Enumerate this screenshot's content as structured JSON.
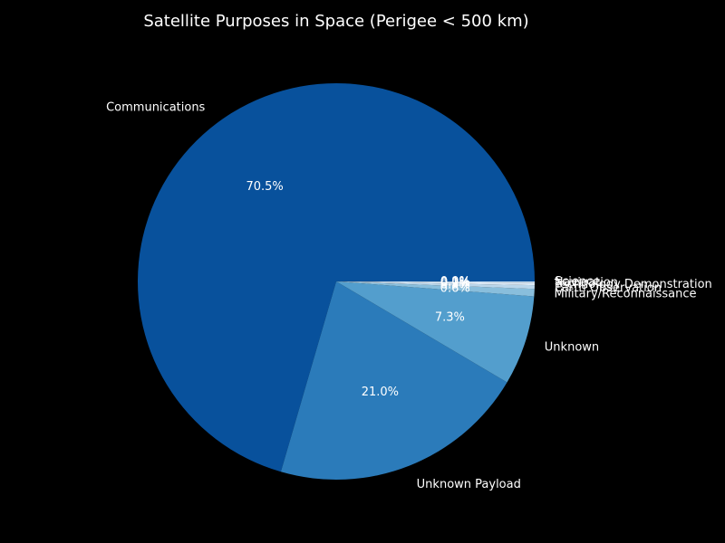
{
  "chart_data": {
    "type": "pie",
    "title": "Satellite Purposes in Space (Perigee < 500 km)",
    "start_angle_deg": 0,
    "direction": "counterclockwise",
    "background": "#000000",
    "slices": [
      {
        "label": "Communications",
        "value": 70.5,
        "pct_label": "70.5%",
        "color": "#08519c"
      },
      {
        "label": "Unknown Payload",
        "value": 21.0,
        "pct_label": "21.0%",
        "color": "#2b7bba"
      },
      {
        "label": "Unknown",
        "value": 7.3,
        "pct_label": "7.3%",
        "color": "#539ecd"
      },
      {
        "label": "Military/Reconnaissance",
        "value": 0.6,
        "pct_label": "0.6%",
        "color": "#89bedc"
      },
      {
        "label": "Earth Observation",
        "value": 0.3,
        "pct_label": "0.3%",
        "color": "#bad6eb"
      },
      {
        "label": "Technology Demonstration",
        "value": 0.2,
        "pct_label": "0.2%",
        "color": "#dbe9f6"
      },
      {
        "label": "Navigation",
        "value": 0.1,
        "pct_label": "0.1%",
        "color": "#c6dbef"
      },
      {
        "label": "Science",
        "value": 0.0,
        "pct_label": "0.0%",
        "color": "#deebf7"
      }
    ]
  }
}
